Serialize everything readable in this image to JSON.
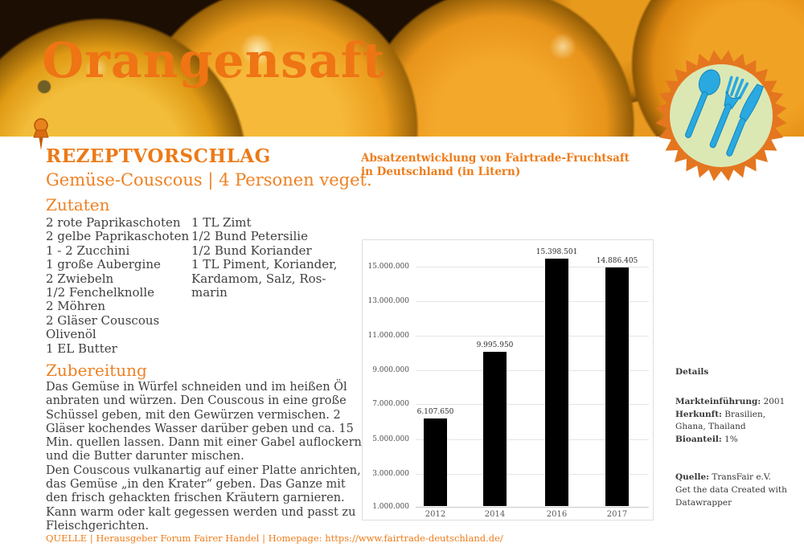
{
  "header": {
    "title": "Orangensaft"
  },
  "badge": {
    "icon": "cutlery-icon",
    "colors": {
      "burst": "#e4761f",
      "circle": "#dbe8b4",
      "cutlery": "#2aa9e0"
    }
  },
  "recipe": {
    "heading": "REZEPTVORSCHLAG",
    "subtitle": "Gemüse-Couscous | 4 Personen veget.",
    "ingredients_heading": "Zutaten",
    "ingredients_col1": [
      "2 rote Paprikaschoten",
      "2 gelbe Paprikaschoten",
      "1 - 2 Zucchini",
      "1 große Aubergine",
      "2 Zwiebeln",
      "1/2 Fenchelknolle",
      "2 Möhren",
      "2 Gläser Couscous",
      "Olivenöl",
      "1 EL Butter"
    ],
    "ingredients_col2": [
      "1 TL Zimt",
      "1/2 Bund Petersilie",
      "1/2 Bund Koriander",
      "1 TL Piment, Koriander,",
      "Kardamom, Salz, Ros-",
      "marin"
    ],
    "preparation_heading": "Zubereitung",
    "preparation_p1": "Das Gemüse in Würfel schneiden und im heißen Öl anbraten und würzen. Den Couscous in eine große Schüssel geben, mit den Gewürzen vermischen. 2 Gläser kochendes Wasser darüber geben und ca. 15 Min. quellen lassen. Dann mit einer Gabel auflockern und die Butter darunter mischen.",
    "preparation_p2": "Den Couscous vulkanartig auf einer Platte anrichten, das Gemüse „in den Krater“ geben. Das Ganze mit den frisch gehackten frischen Kräutern garnieren. Kann warm oder kalt gegessen werden und passt zu Fleischgerichten."
  },
  "chart_data": {
    "type": "bar",
    "title": "Absatzentwicklung von Fairtrade-Fruchtsaft in Deutschland (in Litern)",
    "categories": [
      "2012",
      "2014",
      "2016",
      "2017"
    ],
    "values": [
      6107650,
      9995950,
      15398501,
      14886405
    ],
    "value_labels": [
      "6.107.650",
      "9.995.950",
      "15.398.501",
      "14.886.405"
    ],
    "yticks": [
      "15.000.000",
      "13.000.000",
      "11.000.000",
      "9.000.000",
      "7.000.000",
      "5.000.000",
      "3.000.000",
      "1.000.000"
    ],
    "ylim": [
      1000000,
      15000000
    ],
    "xlabel": "",
    "ylabel": "",
    "grid": true,
    "legend": false,
    "bar_color": "#000000"
  },
  "details": {
    "heading": "Details",
    "rows": [
      {
        "label": "Markteinführung:",
        "value": "2001"
      },
      {
        "label": "Herkunft:",
        "value": "Brasilien, Ghana, Thailand"
      },
      {
        "label": "Bioanteil:",
        "value": "1%"
      }
    ],
    "source_label": "Quelle:",
    "source_value": "TransFair e.V.",
    "links_text": "Get the data Created with Datawrapper"
  },
  "footer": {
    "text": "QUELLE | Herausgeber Forum Fairer Handel | Homepage: ",
    "url": "https://www.fairtrade-deutschland.de/"
  }
}
